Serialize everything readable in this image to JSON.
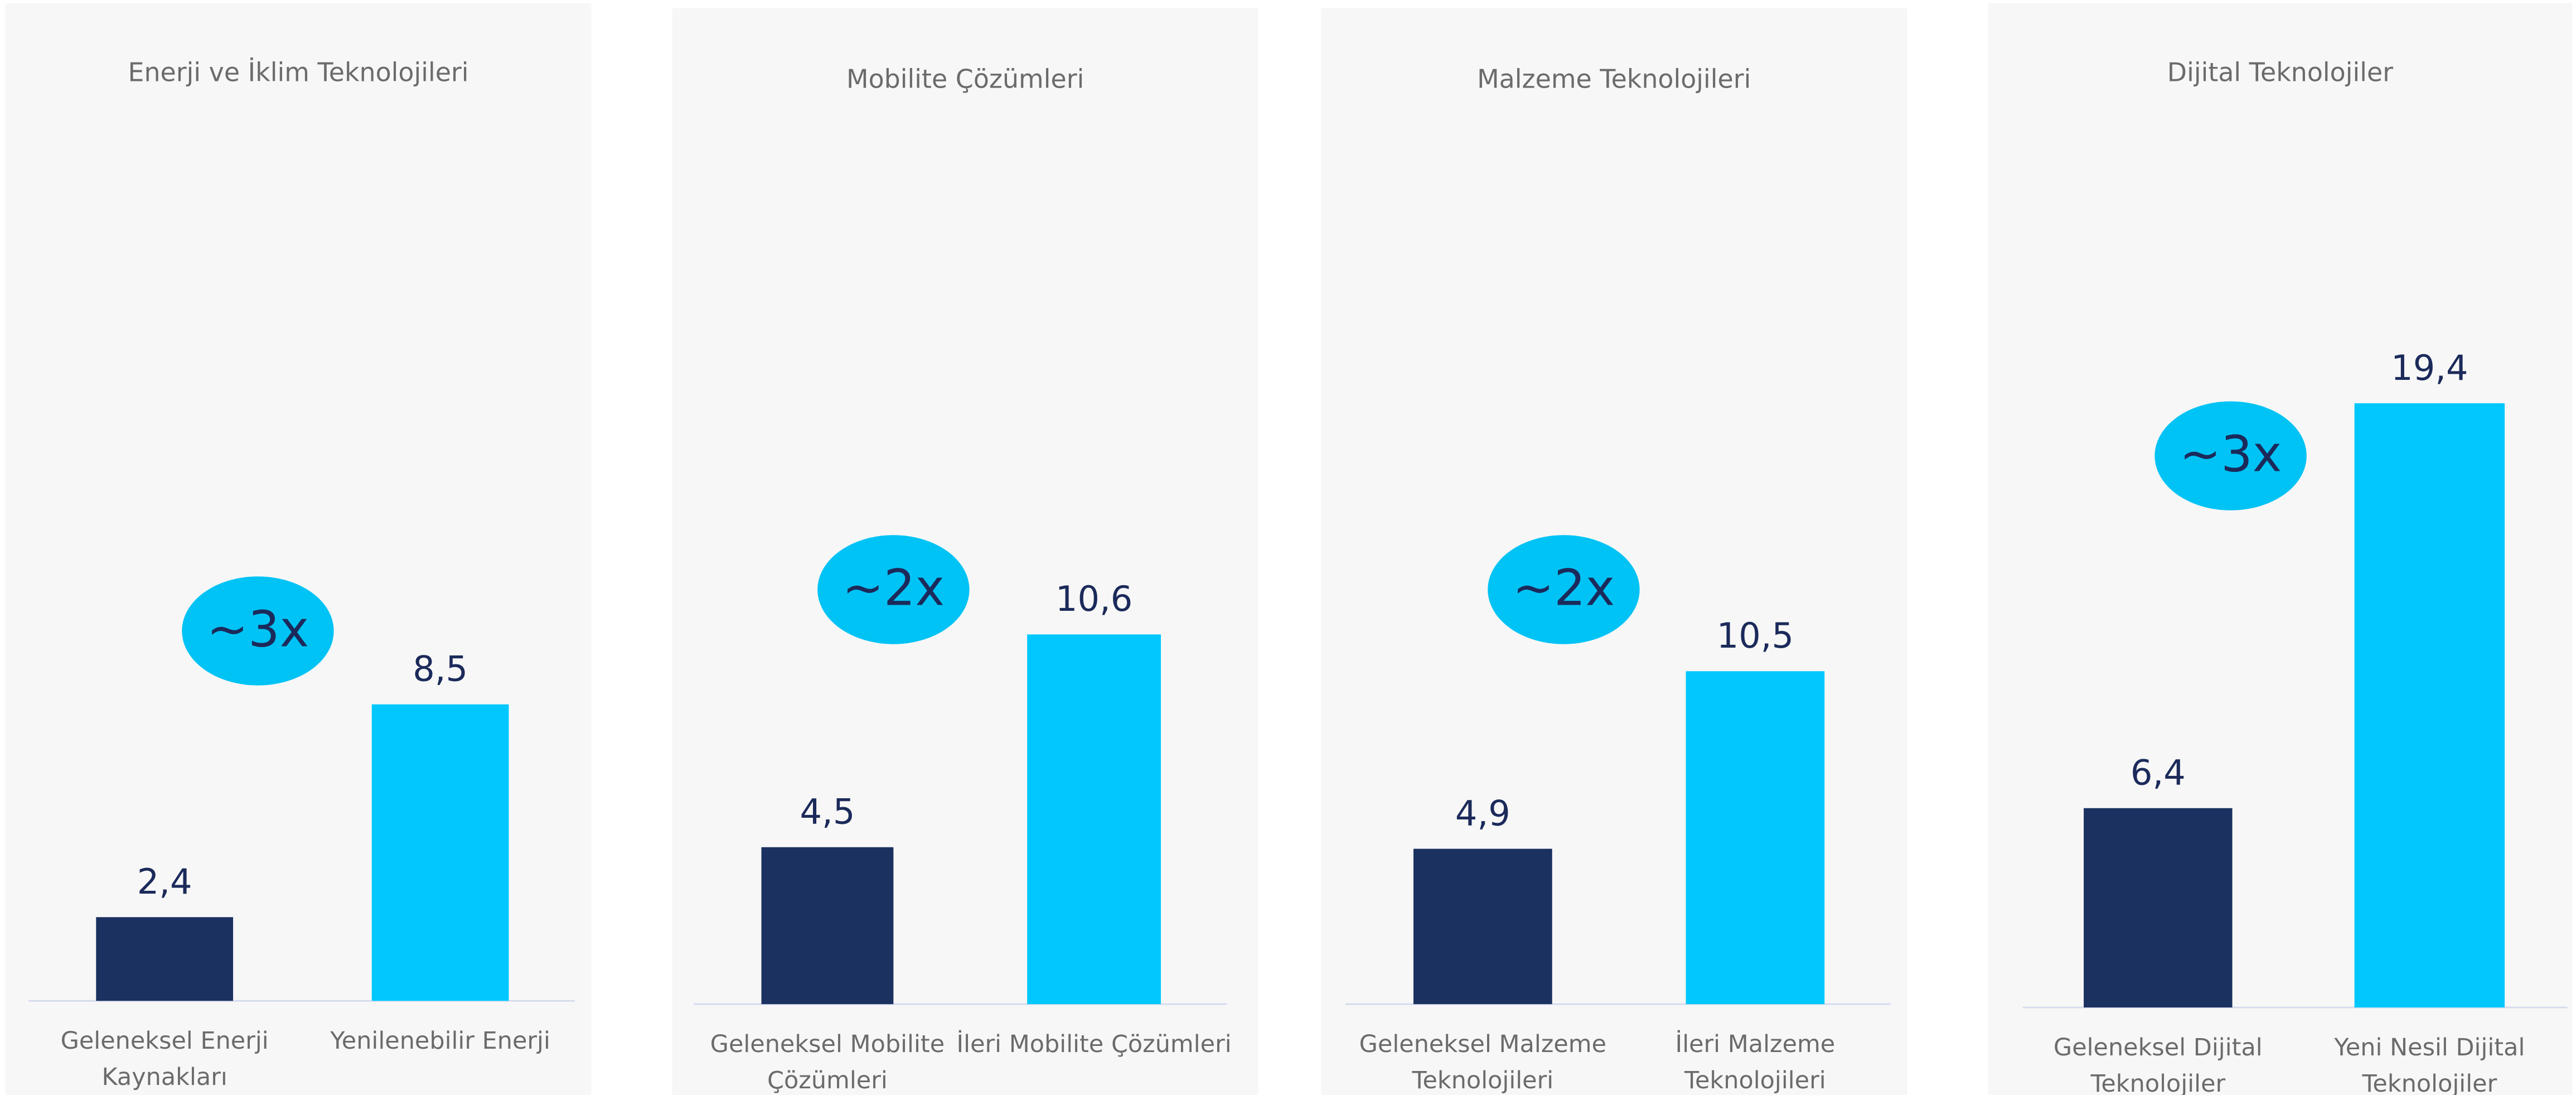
{
  "chart_data": [
    {
      "type": "bar",
      "title": "Enerji ve İklim Teknolojileri",
      "categories": [
        "Geleneksel Enerji Kaynakları",
        "Yenilenebilir Enerji"
      ],
      "values": [
        2.4,
        8.5
      ],
      "value_labels": [
        "2,4",
        "8,5"
      ],
      "colors": [
        "#1b3160",
        "#00c8ff"
      ],
      "ylim": [
        0,
        25
      ],
      "annotation": "~3x"
    },
    {
      "type": "bar",
      "title": "Mobilite Çözümleri",
      "categories": [
        "Geleneksel Mobilite Çözümleri",
        "İleri Mobilite Çözümleri"
      ],
      "values": [
        4.5,
        10.6
      ],
      "value_labels": [
        "4,5",
        "10,6"
      ],
      "colors": [
        "#1b3160",
        "#00c8ff"
      ],
      "ylim": [
        0,
        25
      ],
      "annotation": "~2x"
    },
    {
      "type": "bar",
      "title": "Malzeme Teknolojileri",
      "categories": [
        "Geleneksel Malzeme Teknolojileri",
        "İleri Malzeme Teknolojileri"
      ],
      "values": [
        4.9,
        10.5
      ],
      "value_labels": [
        "4,9",
        "10,5"
      ],
      "colors": [
        "#1b3160",
        "#00c8ff"
      ],
      "ylim": [
        0,
        27.5
      ],
      "annotation": "~2x"
    },
    {
      "type": "bar",
      "title": "Dijital Teknolojiler",
      "categories": [
        "Geleneksel Dijital Teknolojiler",
        "Yeni Nesil Dijital Teknolojiler"
      ],
      "values": [
        6.4,
        19.4
      ],
      "value_labels": [
        "6,4",
        "19,4"
      ],
      "colors": [
        "#1b3160",
        "#00c8ff"
      ],
      "ylim": [
        0,
        28
      ],
      "annotation": "~3x"
    }
  ]
}
